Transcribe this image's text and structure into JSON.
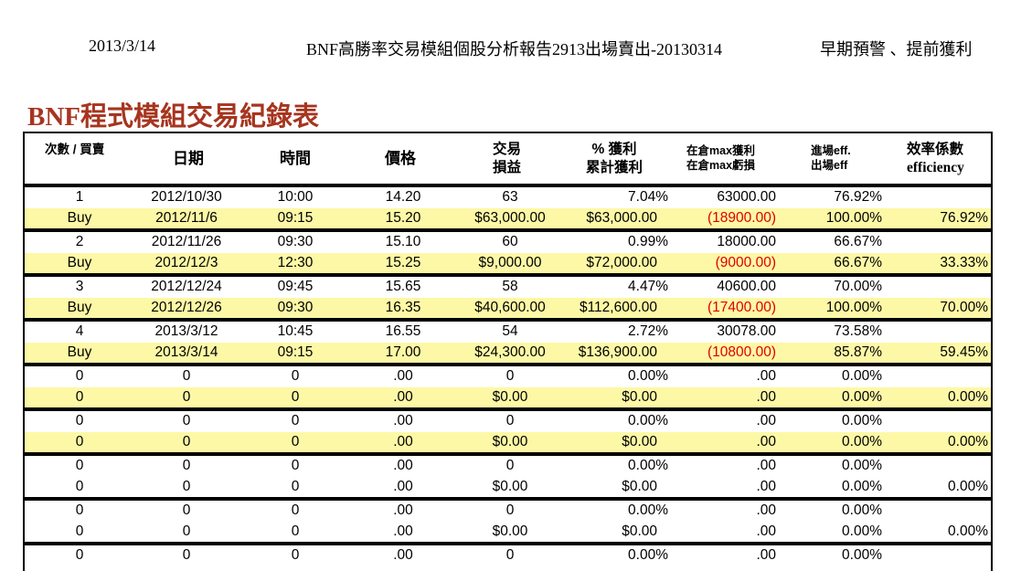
{
  "header": {
    "date": "2013/3/14",
    "title": "BNF高勝率交易模組個股分析報告2913出場賣出-20130314",
    "note": "早期預警 、提前獲利"
  },
  "report_title": "BNF程式模組交易紀錄表",
  "columns": {
    "count_side": "次數 / 買賣",
    "date": "日期",
    "time": "時間",
    "price": "價格",
    "pnl_1": "交易",
    "pnl_2": "損益",
    "profit_1": "% 獲利",
    "profit_2": "累計獲利",
    "max_1": "在倉max獲利",
    "max_2": "在倉max虧損",
    "eff_1": "進場eff.",
    "eff_2": "出場eff",
    "efficiency_1": "效率係數",
    "efficiency_2": "efficiency"
  },
  "trades": [
    {
      "entry": {
        "no": "1",
        "date": "2012/10/30",
        "time": "10:00",
        "price": "14.20",
        "pnl": "63",
        "pct": "7.04%",
        "max": "63000.00",
        "eff": "76.92%"
      },
      "exit": {
        "side": "Buy",
        "date": "2012/11/6",
        "time": "09:15",
        "price": "15.20",
        "pnl": "$63,000.00",
        "cum": "$63,000.00",
        "maxloss": "(18900.00)",
        "eff": "100.00%",
        "efficiency": "76.92%"
      }
    },
    {
      "entry": {
        "no": "2",
        "date": "2012/11/26",
        "time": "09:30",
        "price": "15.10",
        "pnl": "60",
        "pct": "0.99%",
        "max": "18000.00",
        "eff": "66.67%"
      },
      "exit": {
        "side": "Buy",
        "date": "2012/12/3",
        "time": "12:30",
        "price": "15.25",
        "pnl": "$9,000.00",
        "cum": "$72,000.00",
        "maxloss": "(9000.00)",
        "eff": "66.67%",
        "efficiency": "33.33%"
      }
    },
    {
      "entry": {
        "no": "3",
        "date": "2012/12/24",
        "time": "09:45",
        "price": "15.65",
        "pnl": "58",
        "pct": "4.47%",
        "max": "40600.00",
        "eff": "70.00%"
      },
      "exit": {
        "side": "Buy",
        "date": "2012/12/26",
        "time": "09:30",
        "price": "16.35",
        "pnl": "$40,600.00",
        "cum": "$112,600.00",
        "maxloss": "(17400.00)",
        "eff": "100.00%",
        "efficiency": "70.00%"
      }
    },
    {
      "entry": {
        "no": "4",
        "date": "2013/3/12",
        "time": "10:45",
        "price": "16.55",
        "pnl": "54",
        "pct": "2.72%",
        "max": "30078.00",
        "eff": "73.58%"
      },
      "exit": {
        "side": "Buy",
        "date": "2013/3/14",
        "time": "09:15",
        "price": "17.00",
        "pnl": "$24,300.00",
        "cum": "$136,900.00",
        "maxloss": "(10800.00)",
        "eff": "85.87%",
        "efficiency": "59.45%"
      }
    },
    {
      "entry": {
        "no": "0",
        "date": "0",
        "time": "0",
        "price": ".00",
        "pnl": "0",
        "pct": "0.00%",
        "max": ".00",
        "eff": "0.00%"
      },
      "exit": {
        "side": "0",
        "date": "0",
        "time": "0",
        "price": ".00",
        "pnl": "$0.00",
        "cum": "$0.00",
        "maxloss": ".00",
        "eff": "0.00%",
        "efficiency": "0.00%"
      }
    },
    {
      "entry": {
        "no": "0",
        "date": "0",
        "time": "0",
        "price": ".00",
        "pnl": "0",
        "pct": "0.00%",
        "max": ".00",
        "eff": "0.00%"
      },
      "exit": {
        "side": "0",
        "date": "0",
        "time": "0",
        "price": ".00",
        "pnl": "$0.00",
        "cum": "$0.00",
        "maxloss": ".00",
        "eff": "0.00%",
        "efficiency": "0.00%"
      }
    },
    {
      "entry": {
        "no": "0",
        "date": "0",
        "time": "0",
        "price": ".00",
        "pnl": "0",
        "pct": "0.00%",
        "max": ".00",
        "eff": "0.00%"
      },
      "exit": {
        "side": "0",
        "date": "0",
        "time": "0",
        "price": ".00",
        "pnl": "$0.00",
        "cum": "$0.00",
        "maxloss": ".00",
        "eff": "0.00%",
        "efficiency": "0.00%"
      }
    },
    {
      "entry": {
        "no": "0",
        "date": "0",
        "time": "0",
        "price": ".00",
        "pnl": "0",
        "pct": "0.00%",
        "max": ".00",
        "eff": "0.00%"
      },
      "exit": {
        "side": "0",
        "date": "0",
        "time": "0",
        "price": ".00",
        "pnl": "$0.00",
        "cum": "$0.00",
        "maxloss": ".00",
        "eff": "0.00%",
        "efficiency": "0.00%"
      }
    },
    {
      "entry": {
        "no": "0",
        "date": "0",
        "time": "0",
        "price": ".00",
        "pnl": "0",
        "pct": "0.00%",
        "max": ".00",
        "eff": "0.00%"
      }
    }
  ],
  "highlighted_exit_rows": [
    true,
    true,
    true,
    true,
    true,
    true,
    false,
    false
  ],
  "colors": {
    "highlight": "#fdf8a6",
    "title": "#a6351f",
    "loss": "#e00000"
  }
}
